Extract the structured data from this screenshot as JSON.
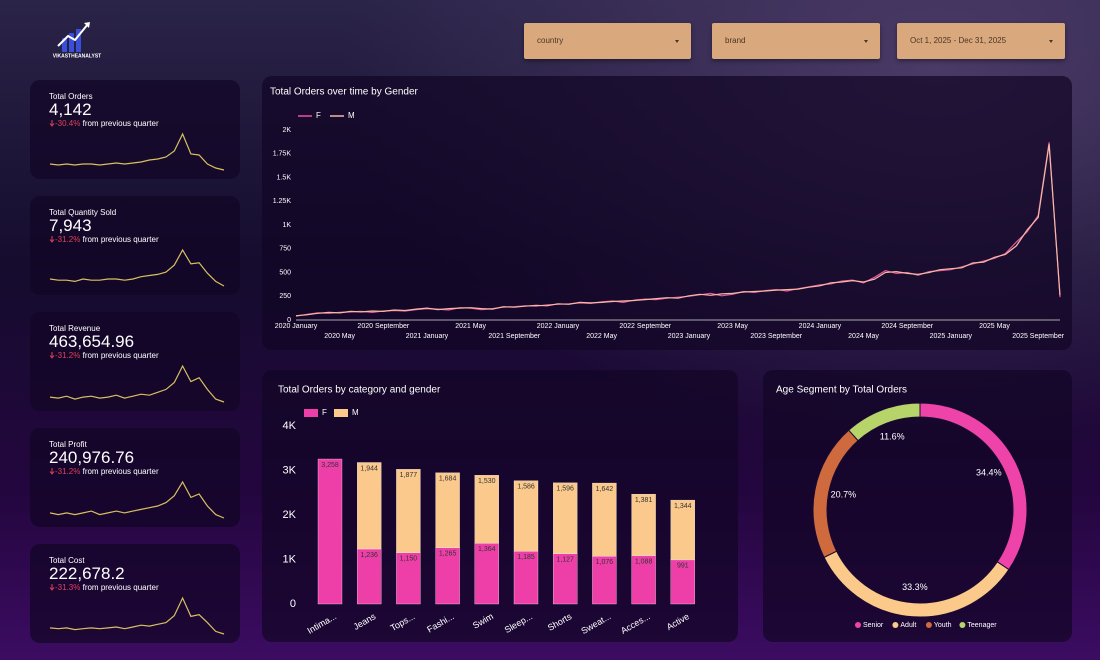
{
  "logo": {
    "text": "VIKASTHEANALYST"
  },
  "filters": [
    "country",
    "brand",
    "Oct 1, 2025 - Dec 31, 2025"
  ],
  "kpis": [
    {
      "title": "Total Orders",
      "value": "4,142",
      "change": "-30.4%",
      "comparison": "from previous quarter",
      "sparkline": [
        20,
        19,
        20,
        19,
        20,
        20,
        19,
        20,
        21,
        20,
        21,
        22,
        24,
        25,
        27,
        33,
        50,
        30,
        29,
        20,
        16,
        14
      ]
    },
    {
      "title": "Total Quantity Sold",
      "value": "7,943",
      "change": "-31.2%",
      "comparison": "from previous quarter",
      "sparkline": [
        20,
        19,
        19,
        18,
        20,
        19,
        19,
        20,
        20,
        19,
        20,
        22,
        23,
        24,
        26,
        32,
        45,
        33,
        34,
        25,
        18,
        14
      ]
    },
    {
      "title": "Total Revenue",
      "value": "463,654.96",
      "change": "-31.2%",
      "comparison": "from previous quarter",
      "sparkline": [
        20,
        19,
        21,
        18,
        20,
        21,
        19,
        20,
        22,
        19,
        21,
        23,
        22,
        25,
        28,
        35,
        52,
        36,
        40,
        28,
        18,
        15
      ]
    },
    {
      "title": "Total Profit",
      "value": "240,976.76",
      "change": "-31.2%",
      "comparison": "from previous quarter",
      "sparkline": [
        20,
        19,
        20,
        19,
        20,
        21,
        19,
        20,
        21,
        20,
        21,
        22,
        23,
        24,
        26,
        30,
        38,
        29,
        31,
        24,
        19,
        17
      ]
    },
    {
      "title": "Total Cost",
      "value": "222,678.2",
      "change": "-31.3%",
      "comparison": "from previous quarter",
      "sparkline": [
        20,
        19,
        20,
        18,
        19,
        20,
        19,
        20,
        21,
        19,
        21,
        23,
        22,
        24,
        26,
        34,
        54,
        33,
        35,
        26,
        16,
        13
      ]
    }
  ],
  "chart_data": [
    {
      "type": "line",
      "title": "Total Orders over time by Gender",
      "categories": [
        "2020 January",
        null,
        null,
        null,
        "2020 May",
        null,
        null,
        null,
        "2020 September",
        null,
        null,
        null,
        "2021 January",
        null,
        null,
        null,
        "2021 May",
        null,
        null,
        null,
        "2021 September",
        null,
        null,
        null,
        "2022 January",
        null,
        null,
        null,
        "2022 May",
        null,
        null,
        null,
        "2022 September",
        null,
        null,
        null,
        "2023 January",
        null,
        null,
        null,
        "2023 May",
        null,
        null,
        null,
        "2023 September",
        null,
        null,
        null,
        "2024 January",
        null,
        null,
        null,
        "2024 May",
        null,
        null,
        null,
        "2024 September",
        null,
        null,
        null,
        "2025 January",
        null,
        null,
        null,
        "2025 May",
        null,
        null,
        null,
        "2025 September",
        null,
        null
      ],
      "series": [
        {
          "name": "F",
          "color": "#e8559f",
          "values": [
            40,
            60,
            75,
            70,
            80,
            85,
            90,
            80,
            95,
            100,
            95,
            110,
            120,
            115,
            105,
            130,
            125,
            110,
            120,
            135,
            140,
            150,
            145,
            160,
            165,
            170,
            180,
            175,
            190,
            200,
            185,
            210,
            220,
            215,
            230,
            240,
            250,
            265,
            280,
            255,
            270,
            300,
            290,
            310,
            320,
            305,
            330,
            350,
            370,
            380,
            410,
            420,
            390,
            450,
            520,
            490,
            500,
            470,
            510,
            520,
            530,
            560,
            590,
            620,
            650,
            700,
            820,
            930,
            1100,
            1870,
            240
          ]
        },
        {
          "name": "M",
          "color": "#f4b9a4",
          "values": [
            45,
            55,
            70,
            80,
            75,
            90,
            85,
            95,
            90,
            105,
            100,
            115,
            125,
            110,
            120,
            125,
            130,
            120,
            115,
            140,
            135,
            145,
            155,
            150,
            170,
            165,
            185,
            180,
            185,
            195,
            200,
            205,
            215,
            225,
            235,
            230,
            255,
            270,
            260,
            275,
            280,
            295,
            300,
            305,
            315,
            320,
            325,
            345,
            360,
            390,
            400,
            415,
            400,
            430,
            500,
            510,
            490,
            480,
            500,
            530,
            540,
            550,
            600,
            610,
            660,
            690,
            780,
            950,
            1080,
            1850,
            260
          ]
        }
      ],
      "ylim": [
        0,
        2000
      ],
      "yticks": [
        0,
        250,
        500,
        750,
        {
          "value": 1000,
          "label": "1K"
        },
        {
          "value": 1250,
          "label": "1.25K"
        },
        {
          "value": 1500,
          "label": "1.5K"
        },
        {
          "value": 1750,
          "label": "1.75K"
        },
        {
          "value": 2000,
          "label": "2K"
        }
      ],
      "grid": false
    },
    {
      "type": "stacked-bar",
      "title": "Total Orders by category and gender",
      "categories": [
        "Intima...",
        "Jeans",
        "Tops...",
        "Fashi...",
        "Swim",
        "Sleep...",
        "Shorts",
        "Sweat...",
        "Acces...",
        "Active"
      ],
      "series": [
        {
          "name": "F",
          "color": "#ee3fa8",
          "values": [
            3258,
            1236,
            1150,
            1265,
            1364,
            1185,
            1127,
            1076,
            1088,
            991
          ],
          "value_labels": [
            "3,258",
            "1,236",
            "1,150",
            "1,265",
            "1,364",
            "1,185",
            "1,127",
            "1,076",
            "1,088",
            "991"
          ]
        },
        {
          "name": "M",
          "color": "#fbc98c",
          "values": [
            null,
            1944,
            1877,
            1684,
            1530,
            1586,
            1596,
            1642,
            1381,
            1344
          ],
          "value_labels": [
            null,
            "1,944",
            "1,877",
            "1,684",
            "1,530",
            "1,586",
            "1,596",
            "1,642",
            "1,381",
            "1,344"
          ]
        }
      ],
      "ylim": [
        0,
        4000
      ],
      "yticks": [
        0,
        {
          "value": 1000,
          "label": "1K"
        },
        {
          "value": 2000,
          "label": "2K"
        },
        {
          "value": 3000,
          "label": "3K"
        },
        {
          "value": 4000,
          "label": "4K"
        }
      ],
      "grid": false
    },
    {
      "type": "donut",
      "title": "Age Segment by Total Orders",
      "categories": [
        "Senior",
        "Adult",
        "Youth",
        "Teenager"
      ],
      "values": [
        34.4,
        33.3,
        20.7,
        11.6
      ],
      "value_labels": [
        "34.4%",
        "33.3%",
        "20.7%",
        "11.6%"
      ],
      "colors": [
        "#ee44aa",
        "#fbc98a",
        "#cf6a3e",
        "#b6d46a"
      ]
    }
  ]
}
